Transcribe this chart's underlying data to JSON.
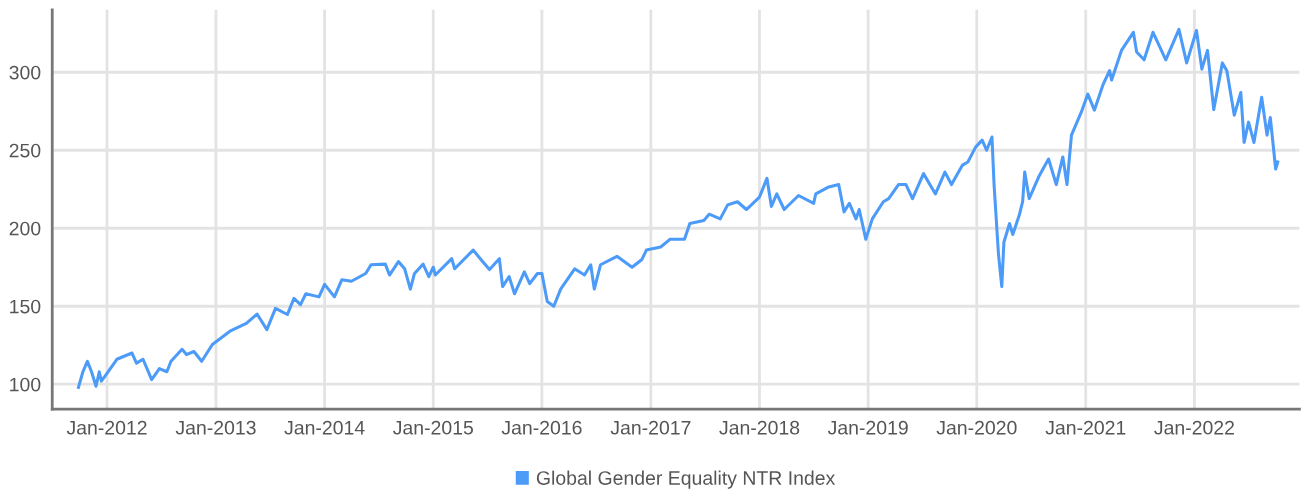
{
  "chart_data": {
    "type": "line",
    "legend": "bottom",
    "grid": true,
    "marker": "none",
    "line_style": "solid",
    "xlim": [
      "2011-07-01",
      "2022-12-20"
    ],
    "ylim": [
      84,
      340
    ],
    "xticks": [
      {
        "value": "2012-01-01",
        "label": "Jan-2012"
      },
      {
        "value": "2013-01-01",
        "label": "Jan-2013"
      },
      {
        "value": "2014-01-01",
        "label": "Jan-2014"
      },
      {
        "value": "2015-01-01",
        "label": "Jan-2015"
      },
      {
        "value": "2016-01-01",
        "label": "Jan-2016"
      },
      {
        "value": "2017-01-01",
        "label": "Jan-2017"
      },
      {
        "value": "2018-01-01",
        "label": "Jan-2018"
      },
      {
        "value": "2019-01-01",
        "label": "Jan-2019"
      },
      {
        "value": "2020-01-01",
        "label": "Jan-2020"
      },
      {
        "value": "2021-01-01",
        "label": "Jan-2021"
      },
      {
        "value": "2022-01-01",
        "label": "Jan-2022"
      }
    ],
    "yticks": [
      100,
      150,
      200,
      250,
      300
    ],
    "series": [
      {
        "name": "Global Gender Equality NTR Index",
        "color": "#4d9bf8",
        "x": [
          "2011-09-27",
          "2011-10-12",
          "2011-10-27",
          "2011-11-10",
          "2011-11-25",
          "2011-12-06",
          "2011-12-13",
          "2012-01-01",
          "2012-02-03",
          "2012-03-25",
          "2012-04-09",
          "2012-05-01",
          "2012-05-30",
          "2012-06-25",
          "2012-07-20",
          "2012-08-03",
          "2012-09-09",
          "2012-09-24",
          "2012-10-19",
          "2012-11-14",
          "2012-12-20",
          "2013-02-17",
          "2013-04-13",
          "2013-05-19",
          "2013-06-21",
          "2013-07-20",
          "2013-08-29",
          "2013-09-20",
          "2013-10-12",
          "2013-10-30",
          "2013-12-13",
          "2014-01-01",
          "2014-02-03",
          "2014-02-28",
          "2014-04-01",
          "2014-05-19",
          "2014-06-06",
          "2014-07-24",
          "2014-08-07",
          "2014-09-06",
          "2014-09-27",
          "2014-10-16",
          "2014-10-30",
          "2014-11-28",
          "2014-12-17",
          "2015-01-01",
          "2015-01-08",
          "2015-03-04",
          "2015-03-14",
          "2015-05-15",
          "2015-06-10",
          "2015-07-09",
          "2015-08-11",
          "2015-08-22",
          "2015-09-13",
          "2015-10-01",
          "2015-11-03",
          "2015-11-21",
          "2015-12-17",
          "2016-01-01",
          "2016-01-19",
          "2016-02-10",
          "2016-03-04",
          "2016-04-20",
          "2016-05-23",
          "2016-06-13",
          "2016-06-25",
          "2016-07-16",
          "2016-09-09",
          "2016-10-30",
          "2016-12-02",
          "2016-12-17",
          "2017-02-03",
          "2017-03-07",
          "2017-04-24",
          "2017-05-12",
          "2017-06-28",
          "2017-07-16",
          "2017-08-22",
          "2017-09-16",
          "2017-10-19",
          "2017-11-18",
          "2018-01-01",
          "2018-01-26",
          "2018-02-10",
          "2018-02-28",
          "2018-03-25",
          "2018-05-12",
          "2018-07-02",
          "2018-07-09",
          "2018-08-22",
          "2018-09-24",
          "2018-10-12",
          "2018-10-30",
          "2018-11-21",
          "2018-12-02",
          "2018-12-24",
          "2019-01-15",
          "2019-02-21",
          "2019-03-11",
          "2019-04-13",
          "2019-05-08",
          "2019-05-30",
          "2019-07-06",
          "2019-08-15",
          "2019-09-16",
          "2019-10-08",
          "2019-11-14",
          "2019-12-02",
          "2019-12-28",
          "2020-01-19",
          "2020-02-03",
          "2020-02-21",
          "2020-02-28",
          "2020-03-14",
          "2020-03-25",
          "2020-04-01",
          "2020-04-20",
          "2020-05-01",
          "2020-05-23",
          "2020-06-03",
          "2020-06-10",
          "2020-06-25",
          "2020-07-27",
          "2020-08-29",
          "2020-09-24",
          "2020-10-16",
          "2020-10-30",
          "2020-11-14",
          "2020-12-17",
          "2021-01-08",
          "2021-01-30",
          "2021-02-28",
          "2021-03-22",
          "2021-03-29",
          "2021-05-01",
          "2021-06-10",
          "2021-06-21",
          "2021-07-16",
          "2021-08-15",
          "2021-09-27",
          "2021-11-10",
          "2021-12-06",
          "2022-01-08",
          "2022-01-26",
          "2022-02-14",
          "2022-03-07",
          "2022-04-05",
          "2022-04-20",
          "2022-05-15",
          "2022-06-06",
          "2022-06-17",
          "2022-07-02",
          "2022-07-20",
          "2022-08-15",
          "2022-09-02",
          "2022-09-13",
          "2022-10-01",
          "2022-10-08"
        ],
        "values": [
          98,
          108,
          114.7,
          108,
          98.7,
          108,
          102,
          107,
          116,
          120,
          113.5,
          116,
          103,
          110,
          108,
          114.7,
          122.4,
          119,
          121,
          114.7,
          125.5,
          134,
          139,
          145,
          135,
          148.6,
          144.7,
          155,
          151,
          158,
          156,
          164,
          156,
          167,
          166,
          171,
          176.6,
          177,
          170,
          178.6,
          174,
          161,
          171,
          177,
          169,
          175,
          170,
          180.5,
          174,
          186,
          180,
          173.5,
          180.5,
          162.6,
          169,
          158,
          172,
          164.5,
          171,
          171,
          153,
          150,
          161,
          174,
          170,
          176.6,
          161,
          176.6,
          182,
          175,
          180,
          186,
          188,
          193,
          193,
          203,
          205,
          209,
          206,
          215,
          217,
          212,
          220,
          232,
          214,
          222,
          212,
          221,
          216,
          222,
          226.5,
          228,
          210.5,
          216,
          206,
          212,
          193,
          206,
          217,
          219,
          228,
          228,
          219,
          235,
          222,
          236,
          228,
          240.5,
          242.5,
          252,
          256.5,
          250,
          258.5,
          228,
          183,
          162.6,
          191,
          203,
          196,
          208.6,
          217,
          236,
          219,
          233,
          244.4,
          228,
          245.7,
          228,
          259.7,
          274.4,
          286,
          275.7,
          292,
          301,
          295,
          314,
          325.6,
          313,
          308,
          325.6,
          308,
          327.5,
          306,
          326.8,
          302,
          314,
          276,
          306,
          301,
          272.5,
          287,
          255,
          268,
          255,
          284,
          259.7,
          271,
          238,
          242.5
        ]
      }
    ]
  }
}
